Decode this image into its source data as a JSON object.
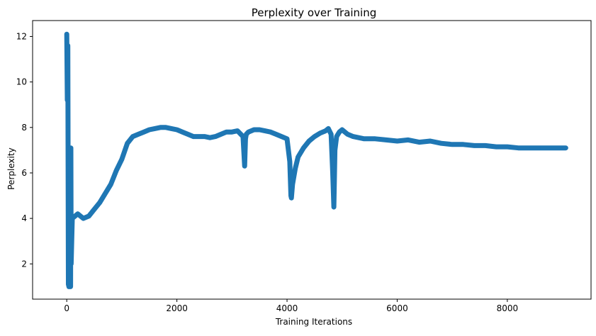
{
  "chart_data": {
    "type": "line",
    "title": "Perplexity over Training",
    "xlabel": "Training Iterations",
    "ylabel": "Perplexity",
    "xlim": [
      -620,
      9520
    ],
    "ylim": [
      0.45,
      12.7
    ],
    "xticks": [
      0,
      2000,
      4000,
      6000,
      8000
    ],
    "yticks": [
      2,
      4,
      6,
      8,
      10,
      12
    ],
    "grid": false,
    "color": "#1f77b4",
    "series": [
      {
        "x": [
          0,
          10,
          20,
          30,
          40,
          50,
          60,
          70,
          75,
          80,
          90,
          100,
          150,
          200,
          300,
          400,
          500,
          600,
          700,
          800,
          900,
          1000,
          1100,
          1200,
          1300,
          1400,
          1500,
          1600,
          1700,
          1800,
          1900,
          2000,
          2100,
          2200,
          2300,
          2400,
          2500,
          2600,
          2700,
          2800,
          2900,
          3000,
          3100,
          3200,
          3230,
          3245,
          3260,
          3300,
          3400,
          3500,
          3600,
          3700,
          3800,
          3900,
          4000,
          4050,
          4070,
          4080,
          4100,
          4150,
          4200,
          4300,
          4400,
          4500,
          4600,
          4700,
          4750,
          4800,
          4830,
          4850,
          4860,
          4870,
          4900,
          4950,
          5000,
          5100,
          5200,
          5300,
          5400,
          5500,
          5600,
          5800,
          6000,
          6200,
          6400,
          6600,
          6800,
          7000,
          7200,
          7400,
          7600,
          7800,
          8000,
          8200,
          8400,
          8600,
          8800,
          9000,
          9060
        ],
        "y": [
          12.1,
          9.2,
          11.6,
          1.1,
          1.0,
          1.0,
          1.0,
          1.0,
          7.1,
          2.0,
          3.0,
          4.0,
          4.1,
          4.2,
          4.0,
          4.1,
          4.4,
          4.7,
          5.1,
          5.5,
          6.1,
          6.6,
          7.3,
          7.6,
          7.7,
          7.8,
          7.9,
          7.95,
          8.0,
          8.0,
          7.95,
          7.9,
          7.8,
          7.7,
          7.6,
          7.6,
          7.6,
          7.55,
          7.6,
          7.7,
          7.8,
          7.8,
          7.85,
          7.6,
          6.3,
          7.5,
          7.7,
          7.8,
          7.9,
          7.9,
          7.85,
          7.8,
          7.7,
          7.6,
          7.5,
          6.5,
          5.0,
          4.9,
          5.5,
          6.2,
          6.7,
          7.1,
          7.4,
          7.6,
          7.75,
          7.85,
          7.95,
          7.7,
          6.0,
          4.5,
          5.8,
          7.0,
          7.6,
          7.8,
          7.9,
          7.7,
          7.6,
          7.55,
          7.5,
          7.5,
          7.5,
          7.45,
          7.4,
          7.45,
          7.35,
          7.4,
          7.3,
          7.25,
          7.25,
          7.2,
          7.2,
          7.15,
          7.15,
          7.1,
          7.1,
          7.1,
          7.1,
          7.1,
          7.1
        ]
      }
    ]
  }
}
